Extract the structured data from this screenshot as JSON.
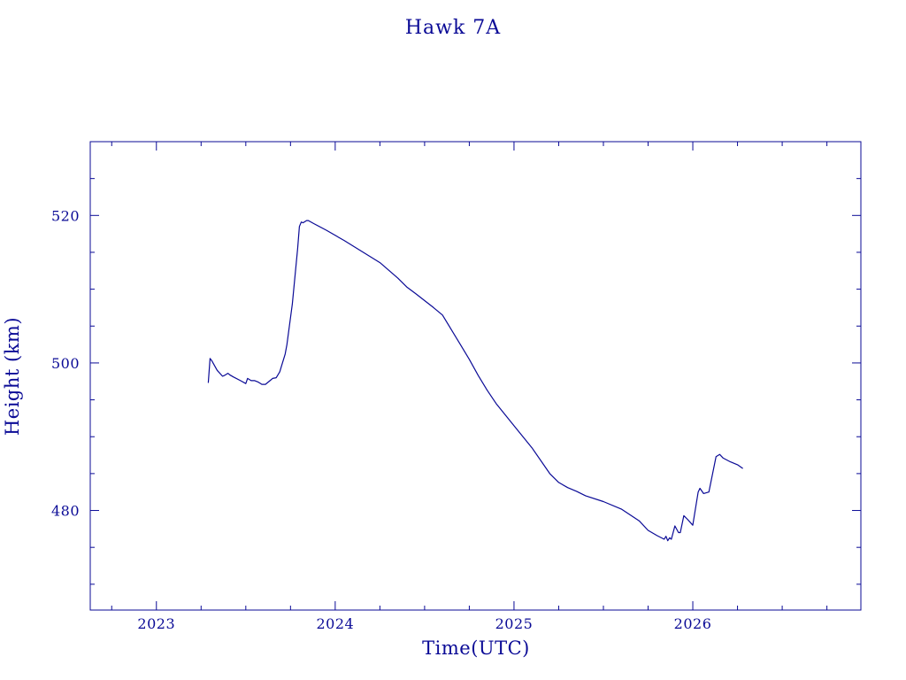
{
  "colors": {
    "ink": "#0a0a96",
    "background": "#ffffff"
  },
  "chart_data": {
    "type": "line",
    "title": "Hawk 7A",
    "xlabel": "Time(UTC)",
    "ylabel": "Height (km)",
    "x_tick_labels": [
      "2023",
      "2024",
      "2025",
      "2026"
    ],
    "x_ticks": [
      2023,
      2024,
      2025,
      2026
    ],
    "y_tick_labels": [
      "480",
      "500",
      "520"
    ],
    "y_ticks": [
      480,
      500,
      520
    ],
    "xlim": [
      2022.63,
      2026.94
    ],
    "ylim": [
      466.5,
      530
    ],
    "grid": false,
    "series": [
      {
        "x": [
          2023.29,
          2023.3,
          2023.31,
          2023.34,
          2023.37,
          2023.38,
          2023.4,
          2023.41,
          2023.43,
          2023.47,
          2023.5,
          2023.51,
          2023.53,
          2023.55,
          2023.57,
          2023.59,
          2023.61,
          2023.64,
          2023.65,
          2023.67,
          2023.69,
          2023.7,
          2023.72,
          2023.73,
          2023.76,
          2023.79,
          2023.8,
          2023.81,
          2023.82,
          2023.84,
          2023.85,
          2023.88,
          2023.95,
          2024.05,
          2024.15,
          2024.25,
          2024.35,
          2024.4,
          2024.45,
          2024.55,
          2024.6,
          2024.65,
          2024.7,
          2024.75,
          2024.8,
          2024.85,
          2024.9,
          2025.0,
          2025.1,
          2025.2,
          2025.25,
          2025.3,
          2025.35,
          2025.4,
          2025.5,
          2025.6,
          2025.7,
          2025.75,
          2025.8,
          2025.84,
          2025.85,
          2025.86,
          2025.87,
          2025.88,
          2025.9,
          2025.92,
          2025.93,
          2025.95,
          2025.97,
          2026.0,
          2026.03,
          2026.04,
          2026.06,
          2026.09,
          2026.13,
          2026.15,
          2026.17,
          2026.21,
          2026.25,
          2026.28
        ],
        "y": [
          497.3,
          500.6,
          500.3,
          499.0,
          498.2,
          498.3,
          498.6,
          498.4,
          498.1,
          497.6,
          497.2,
          497.9,
          497.6,
          497.6,
          497.4,
          497.1,
          497.1,
          497.7,
          497.9,
          498.0,
          498.8,
          499.6,
          501.2,
          502.5,
          508.0,
          515.5,
          518.5,
          519.1,
          519.0,
          519.3,
          519.3,
          518.9,
          518.0,
          516.6,
          515.1,
          513.6,
          511.5,
          510.3,
          509.4,
          507.5,
          506.5,
          504.5,
          502.5,
          500.5,
          498.3,
          496.3,
          494.5,
          491.5,
          488.5,
          485.0,
          483.8,
          483.1,
          482.6,
          482.0,
          481.2,
          480.2,
          478.6,
          477.3,
          476.6,
          476.1,
          476.5,
          475.9,
          476.3,
          476.1,
          477.9,
          477.0,
          477.0,
          479.3,
          478.8,
          478.0,
          482.5,
          483.0,
          482.3,
          482.5,
          487.3,
          487.6,
          487.1,
          486.6,
          486.2,
          485.7
        ]
      }
    ]
  }
}
